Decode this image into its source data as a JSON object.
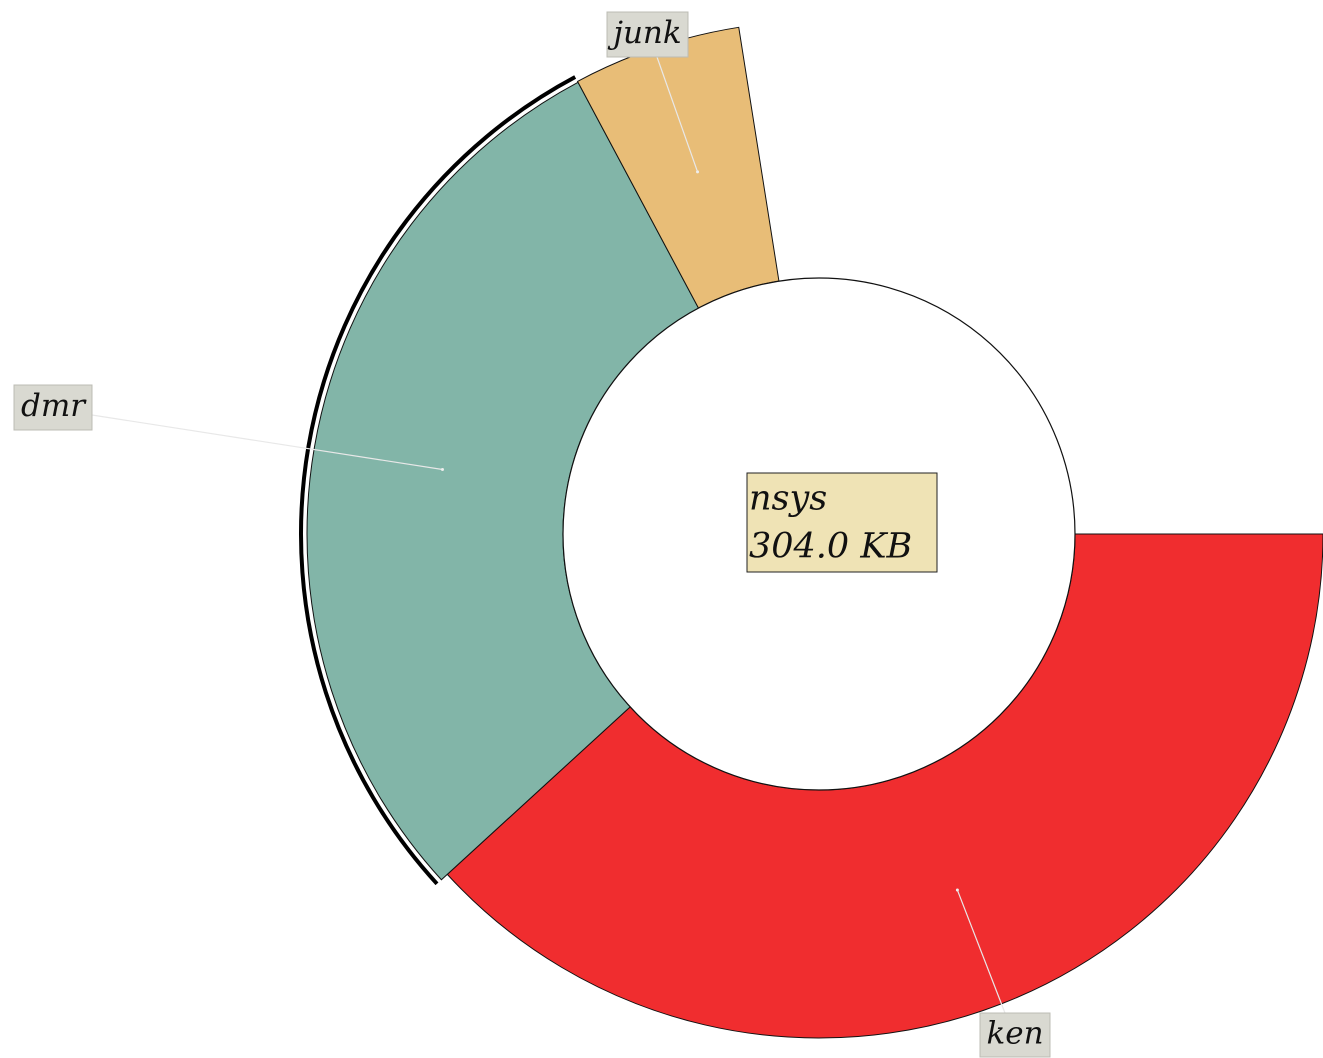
{
  "chart_data": {
    "type": "pie",
    "title": "nsys",
    "subtitle": "304.0 KB",
    "categories": [
      "ken",
      "dmr",
      "junk"
    ],
    "values": [
      38.2,
      29,
      5.3
    ],
    "colors": [
      "#f02d2f",
      "#82b5a8",
      "#e8bd77"
    ]
  }
}
